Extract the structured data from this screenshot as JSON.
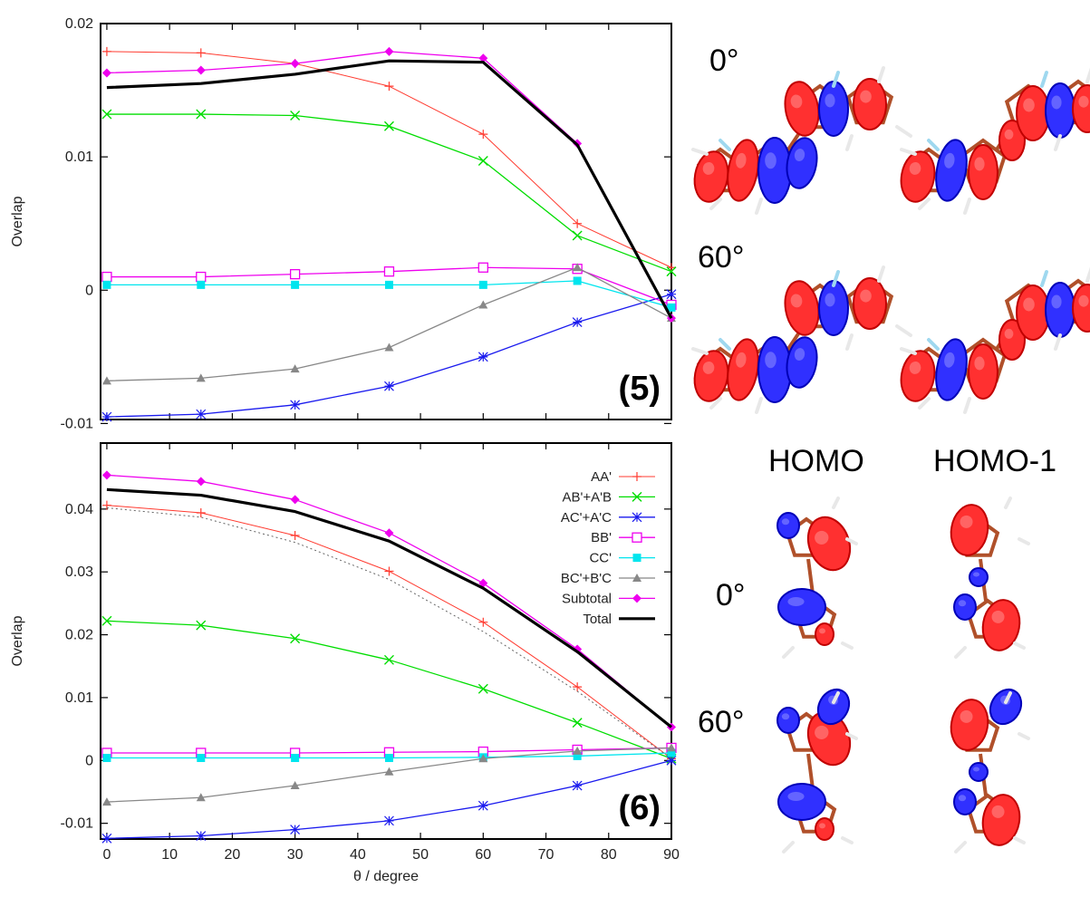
{
  "chart_data": [
    {
      "type": "line",
      "panel_label": "(5)",
      "xlabel": "",
      "ylabel": "Overlap",
      "xlim": [
        -1,
        90
      ],
      "ylim": [
        -0.0097,
        0.02
      ],
      "x_ticks": [],
      "y_ticks": [
        {
          "value": 0.02,
          "label": "0.02"
        },
        {
          "value": 0.01,
          "label": "0.01"
        },
        {
          "value": 0,
          "label": "0"
        },
        {
          "value": -0.01,
          "label": "-0.01"
        }
      ],
      "x": [
        0,
        15,
        30,
        45,
        60,
        75,
        90
      ],
      "series": [
        {
          "name": "AA'",
          "color": "#ff3b30",
          "marker": "plus",
          "width": 1,
          "values": [
            0.0179,
            0.0178,
            0.017,
            0.0153,
            0.0117,
            0.005,
            0.0017
          ]
        },
        {
          "name": "AB'+A'B",
          "color": "#00dd00",
          "marker": "x",
          "width": 1.3,
          "values": [
            0.0132,
            0.0132,
            0.0131,
            0.0123,
            0.0097,
            0.0041,
            0.0014
          ]
        },
        {
          "name": "AC'+A'C",
          "color": "#1a1aee",
          "marker": "star",
          "width": 1.3,
          "values": [
            -0.0095,
            -0.0093,
            -0.0086,
            -0.0072,
            -0.005,
            -0.0024,
            -0.0003
          ]
        },
        {
          "name": "BB'",
          "color": "#ee00ee",
          "marker": "open-square",
          "width": 1.3,
          "values": [
            0.001,
            0.001,
            0.0012,
            0.0014,
            0.0017,
            0.0016,
            -0.0011
          ]
        },
        {
          "name": "CC'",
          "color": "#00e5ee",
          "marker": "filled-square",
          "width": 1.3,
          "values": [
            0.0004,
            0.0004,
            0.0004,
            0.0004,
            0.0004,
            0.0007,
            -0.0013
          ]
        },
        {
          "name": "BC'+B'C",
          "color": "#888888",
          "marker": "triangle",
          "width": 1.3,
          "values": [
            -0.0068,
            -0.0066,
            -0.0059,
            -0.0043,
            -0.0011,
            0.0017,
            -0.0021
          ]
        },
        {
          "name": "Subtotal",
          "color": "#ee00ee",
          "marker": "diamond",
          "width": 1.3,
          "values": [
            0.0163,
            0.0165,
            0.017,
            0.0179,
            0.0174,
            0.011,
            -0.0021
          ]
        },
        {
          "name": "Total",
          "color": "#000000",
          "marker": "none",
          "width": 3.2,
          "values": [
            0.0152,
            0.0155,
            0.0162,
            0.0172,
            0.0171,
            0.0109,
            -0.0021
          ]
        }
      ]
    },
    {
      "type": "line",
      "panel_label": "(6)",
      "xlabel": "θ / degree",
      "ylabel": "Overlap",
      "xlim": [
        -1,
        90
      ],
      "ylim": [
        -0.0125,
        0.0505
      ],
      "x_ticks": [
        {
          "value": 0,
          "label": "0"
        },
        {
          "value": 10,
          "label": "10"
        },
        {
          "value": 20,
          "label": "20"
        },
        {
          "value": 30,
          "label": "30"
        },
        {
          "value": 40,
          "label": "40"
        },
        {
          "value": 50,
          "label": "50"
        },
        {
          "value": 60,
          "label": "60"
        },
        {
          "value": 70,
          "label": "70"
        },
        {
          "value": 80,
          "label": "80"
        },
        {
          "value": 90,
          "label": "90"
        }
      ],
      "y_ticks": [
        {
          "value": 0.04,
          "label": "0.04"
        },
        {
          "value": 0.03,
          "label": "0.03"
        },
        {
          "value": 0.02,
          "label": "0.02"
        },
        {
          "value": 0.01,
          "label": "0.01"
        },
        {
          "value": 0,
          "label": "0"
        },
        {
          "value": -0.01,
          "label": "-0.01"
        }
      ],
      "x": [
        0,
        15,
        30,
        45,
        60,
        75,
        90
      ],
      "legend": "top-right",
      "series": [
        {
          "name": "AA'",
          "color": "#ff3b30",
          "marker": "plus",
          "width": 1,
          "values": [
            0.0406,
            0.0394,
            0.0358,
            0.0301,
            0.022,
            0.0117,
            0.0003
          ]
        },
        {
          "name": "AB'+A'B",
          "color": "#00dd00",
          "marker": "x",
          "width": 1.3,
          "values": [
            0.0222,
            0.0215,
            0.0194,
            0.016,
            0.0114,
            0.006,
            0.0003
          ]
        },
        {
          "name": "AC'+A'C",
          "color": "#1a1aee",
          "marker": "star",
          "width": 1.3,
          "values": [
            -0.0124,
            -0.012,
            -0.011,
            -0.0096,
            -0.0072,
            -0.004,
            0.0
          ]
        },
        {
          "name": "BB'",
          "color": "#ee00ee",
          "marker": "open-square",
          "width": 1.3,
          "values": [
            0.0012,
            0.0012,
            0.0012,
            0.0013,
            0.0014,
            0.0017,
            0.002
          ]
        },
        {
          "name": "CC'",
          "color": "#00e5ee",
          "marker": "filled-square",
          "width": 1.3,
          "values": [
            0.0004,
            0.0004,
            0.0004,
            0.0004,
            0.0005,
            0.0007,
            0.0012
          ]
        },
        {
          "name": "BC'+B'C",
          "color": "#888888",
          "marker": "triangle",
          "width": 1.3,
          "values": [
            -0.0066,
            -0.0059,
            -0.004,
            -0.0018,
            0.0003,
            0.0015,
            0.002
          ]
        },
        {
          "name": "Subtotal",
          "color": "#ee00ee",
          "marker": "diamond",
          "width": 1.3,
          "values": [
            0.0454,
            0.0444,
            0.0415,
            0.0362,
            0.0282,
            0.0177,
            0.0053
          ]
        },
        {
          "name": "Total",
          "color": "#000000",
          "marker": "none",
          "width": 3.2,
          "values": [
            0.0431,
            0.0422,
            0.0396,
            0.0349,
            0.0274,
            0.0173,
            0.0053
          ]
        },
        {
          "name": "",
          "color": "#666666",
          "marker": "none",
          "width": 1,
          "dashed": true,
          "values": [
            0.0402,
            0.0387,
            0.0347,
            0.0288,
            0.0205,
            0.011,
            0.0003
          ]
        }
      ]
    }
  ],
  "orbital_panels": {
    "upper": {
      "angles": [
        "0°",
        "60°"
      ]
    },
    "lower": {
      "columns": [
        "HOMO",
        "HOMO-1"
      ],
      "angles": [
        "0°",
        "60°"
      ]
    }
  }
}
